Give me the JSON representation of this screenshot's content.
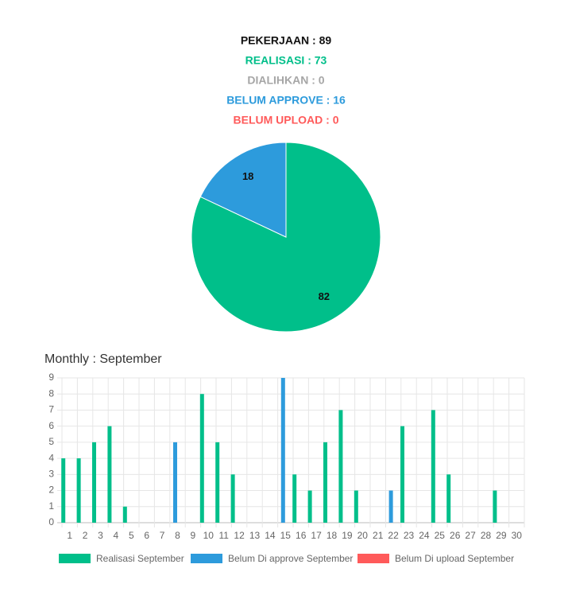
{
  "summary": [
    {
      "text": "PEKERJAAN : 89",
      "color": "#111111"
    },
    {
      "text": "REALISASI : 73",
      "color": "#00bf8a"
    },
    {
      "text": "DIALIHKAN : 0",
      "color": "#a6a6a6"
    },
    {
      "text": "BELUM APPROVE : 16",
      "color": "#2d9bdc"
    },
    {
      "text": "BELUM UPLOAD : 0",
      "color": "#ff5a5a"
    }
  ],
  "chart_data": [
    {
      "type": "pie",
      "values": [
        82,
        18
      ],
      "colors": [
        "#00bf8a",
        "#2d9bdc"
      ]
    },
    {
      "type": "bar",
      "title": "Monthly : September",
      "categories": [
        "1",
        "2",
        "3",
        "4",
        "5",
        "6",
        "7",
        "8",
        "9",
        "10",
        "11",
        "12",
        "13",
        "14",
        "15",
        "16",
        "17",
        "18",
        "19",
        "20",
        "21",
        "22",
        "23",
        "24",
        "25",
        "26",
        "27",
        "28",
        "29",
        "30"
      ],
      "series": [
        {
          "name": "Realisasi September",
          "color": "#00bf8a",
          "values": [
            4,
            4,
            5,
            6,
            1,
            0,
            0,
            0,
            0,
            8,
            5,
            3,
            0,
            0,
            0,
            3,
            2,
            5,
            7,
            2,
            0,
            0,
            6,
            0,
            7,
            3,
            0,
            0,
            2,
            0
          ]
        },
        {
          "name": "Belum Di approve September",
          "color": "#2d9bdc",
          "values": [
            0,
            0,
            0,
            0,
            0,
            0,
            0,
            5,
            0,
            0,
            0,
            0,
            0,
            0,
            9,
            0,
            0,
            0,
            0,
            0,
            0,
            2,
            0,
            0,
            0,
            0,
            0,
            0,
            0,
            0
          ]
        },
        {
          "name": "Belum Di upload September",
          "color": "#ff5a5a",
          "values": [
            0,
            0,
            0,
            0,
            0,
            0,
            0,
            0,
            0,
            0,
            0,
            0,
            0,
            0,
            0,
            0,
            0,
            0,
            0,
            0,
            0,
            0,
            0,
            0,
            0,
            0,
            0,
            0,
            0,
            0
          ]
        }
      ],
      "ylim": [
        0,
        9
      ],
      "yticks": [
        0,
        1,
        2,
        3,
        4,
        5,
        6,
        7,
        8,
        9
      ],
      "grid": true,
      "legend": "bottom"
    }
  ]
}
